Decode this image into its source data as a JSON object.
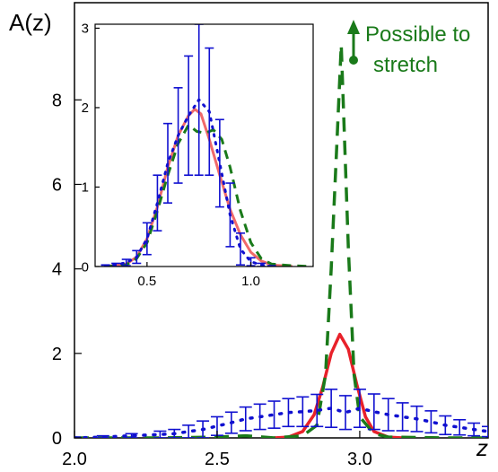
{
  "chart_data": [
    {
      "type": "line",
      "ylabel": "A(z)",
      "xlabel": "z",
      "xlim": [
        2.0,
        3.45
      ],
      "ylim": [
        0,
        10.3
      ],
      "x_ticks": [
        "2.0",
        "2.5",
        "3.0"
      ],
      "y_ticks": [
        "0",
        "2",
        "4",
        "6",
        "8"
      ],
      "annotation": {
        "text_line1": "Possible to",
        "text_line2": "stretch",
        "color": "#1a7a1a"
      },
      "series": [
        {
          "style": "solid-red",
          "color": "#e8212a",
          "x": [
            2.7,
            2.75,
            2.8,
            2.84,
            2.87,
            2.9,
            2.93,
            2.96,
            2.99,
            3.02,
            3.05,
            3.1,
            3.15
          ],
          "y": [
            0.0,
            0.02,
            0.15,
            0.55,
            1.2,
            2.0,
            2.45,
            2.1,
            1.25,
            0.5,
            0.15,
            0.02,
            0.0
          ]
        },
        {
          "style": "dashed-green",
          "color": "#1a7a1a",
          "x": [
            2.0,
            2.3,
            2.5,
            2.6,
            2.7,
            2.8,
            2.85,
            2.88,
            2.9,
            2.92,
            2.935,
            2.96,
            2.98,
            3.0,
            3.05,
            3.1,
            3.2,
            3.3,
            3.45
          ],
          "y": [
            0.0,
            0.0,
            0.02,
            0.05,
            0.0,
            0.05,
            0.3,
            1.5,
            4.0,
            7.0,
            9.3,
            4.5,
            1.5,
            0.5,
            0.1,
            0.02,
            0.01,
            0.0,
            0.0
          ]
        },
        {
          "style": "dotted-blue-errorbars",
          "color": "#1010d0",
          "x": [
            2.0,
            2.1,
            2.2,
            2.3,
            2.35,
            2.4,
            2.45,
            2.5,
            2.55,
            2.6,
            2.65,
            2.7,
            2.75,
            2.8,
            2.85,
            2.9,
            2.95,
            3.0,
            3.05,
            3.1,
            3.15,
            3.2,
            3.25,
            3.3,
            3.35,
            3.4,
            3.45
          ],
          "y": [
            0.0,
            0.02,
            0.05,
            0.08,
            0.1,
            0.15,
            0.2,
            0.28,
            0.36,
            0.45,
            0.5,
            0.55,
            0.6,
            0.62,
            0.65,
            0.7,
            0.6,
            0.7,
            0.62,
            0.55,
            0.5,
            0.45,
            0.38,
            0.3,
            0.25,
            0.2,
            0.15
          ],
          "err": [
            0.02,
            0.03,
            0.05,
            0.08,
            0.1,
            0.15,
            0.2,
            0.22,
            0.25,
            0.28,
            0.3,
            0.32,
            0.33,
            0.35,
            0.38,
            0.45,
            0.4,
            0.45,
            0.42,
            0.38,
            0.33,
            0.3,
            0.26,
            0.22,
            0.18,
            0.15,
            0.12
          ]
        }
      ]
    },
    {
      "type": "line",
      "inset": true,
      "xlim": [
        0.25,
        1.3
      ],
      "ylim": [
        0,
        3.05
      ],
      "x_ticks": [
        "0.5",
        "1.0"
      ],
      "y_ticks": [
        "0",
        "1",
        "2",
        "3"
      ],
      "series": [
        {
          "style": "solid-red",
          "color": "#f06a6a",
          "x": [
            0.3,
            0.4,
            0.45,
            0.5,
            0.55,
            0.6,
            0.65,
            0.7,
            0.73,
            0.76,
            0.8,
            0.85,
            0.9,
            0.95,
            1.0,
            1.05,
            1.1,
            1.2
          ],
          "y": [
            0.0,
            0.03,
            0.12,
            0.35,
            0.75,
            1.25,
            1.65,
            1.9,
            1.98,
            1.92,
            1.6,
            1.15,
            0.72,
            0.4,
            0.18,
            0.07,
            0.02,
            0.0
          ]
        },
        {
          "style": "dashed-green",
          "color": "#1a7a1a",
          "x": [
            0.3,
            0.4,
            0.45,
            0.5,
            0.55,
            0.6,
            0.65,
            0.7,
            0.74,
            0.78,
            0.82,
            0.86,
            0.9,
            0.95,
            1.0,
            1.05,
            1.1,
            1.2,
            1.3
          ],
          "y": [
            0.0,
            0.02,
            0.1,
            0.3,
            0.7,
            1.15,
            1.55,
            1.78,
            1.7,
            1.68,
            1.72,
            1.6,
            1.25,
            0.7,
            0.3,
            0.1,
            0.03,
            0.01,
            0.0
          ]
        },
        {
          "style": "dotted-blue-errorbars",
          "color": "#1010d0",
          "x": [
            0.3,
            0.35,
            0.4,
            0.45,
            0.5,
            0.55,
            0.6,
            0.65,
            0.7,
            0.75,
            0.8,
            0.85,
            0.9,
            0.95,
            1.0,
            1.05,
            1.1
          ],
          "y": [
            0.01,
            0.02,
            0.05,
            0.12,
            0.35,
            0.8,
            1.3,
            1.65,
            1.9,
            2.1,
            1.95,
            1.3,
            0.65,
            0.22,
            0.06,
            0.02,
            0.0
          ],
          "err": [
            0.01,
            0.02,
            0.04,
            0.08,
            0.2,
            0.35,
            0.5,
            0.6,
            0.75,
            0.95,
            0.8,
            0.55,
            0.4,
            0.2,
            0.05,
            0.02,
            0.01
          ]
        }
      ]
    }
  ]
}
